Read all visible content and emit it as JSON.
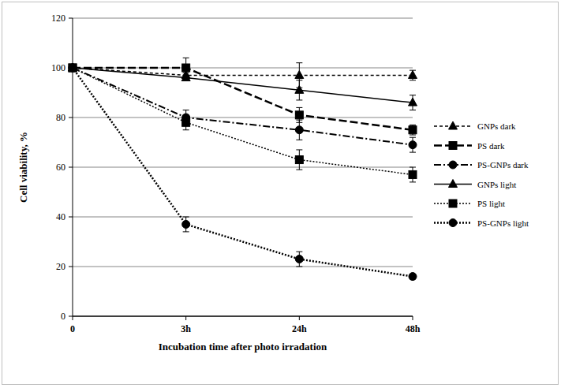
{
  "chart_data": {
    "type": "line",
    "x_label": "Incubation time after photo irradation",
    "y_label": "Cell viability, %",
    "categories": [
      "0",
      "3h",
      "24h",
      "48h"
    ],
    "ylim": [
      0,
      120
    ],
    "yticks": [
      0,
      20,
      40,
      60,
      80,
      100,
      120
    ],
    "grid": true,
    "legend": "right",
    "series": [
      {
        "name": "GNPs dark",
        "color": "#000000",
        "marker": "triangle",
        "line_style": "dashed",
        "values": [
          100,
          97,
          97,
          97
        ],
        "errors": [
          0,
          1,
          5,
          2
        ]
      },
      {
        "name": "PS dark",
        "color": "#000000",
        "marker": "square",
        "line_style": "long_dash",
        "values": [
          100,
          100,
          81,
          75
        ],
        "errors": [
          0,
          4,
          3,
          2
        ]
      },
      {
        "name": "PS-GNPs dark",
        "color": "#000000",
        "marker": "circle",
        "line_style": "dash_dot",
        "values": [
          100,
          80,
          75,
          69
        ],
        "errors": [
          0,
          3,
          4,
          3
        ]
      },
      {
        "name": "GNPs light",
        "color": "#000000",
        "marker": "triangle",
        "line_style": "solid",
        "values": [
          100,
          96,
          91,
          86
        ],
        "errors": [
          0,
          1,
          4,
          3
        ]
      },
      {
        "name": "PS light",
        "color": "#000000",
        "marker": "square",
        "line_style": "dotted",
        "values": [
          100,
          78,
          63,
          57
        ],
        "errors": [
          0,
          3,
          4,
          3
        ]
      },
      {
        "name": "PS-GNPs light",
        "color": "#000000",
        "marker": "circle",
        "line_style": "dotted",
        "values": [
          100,
          37,
          23,
          16
        ],
        "errors": [
          0,
          3,
          3,
          1
        ]
      }
    ]
  }
}
